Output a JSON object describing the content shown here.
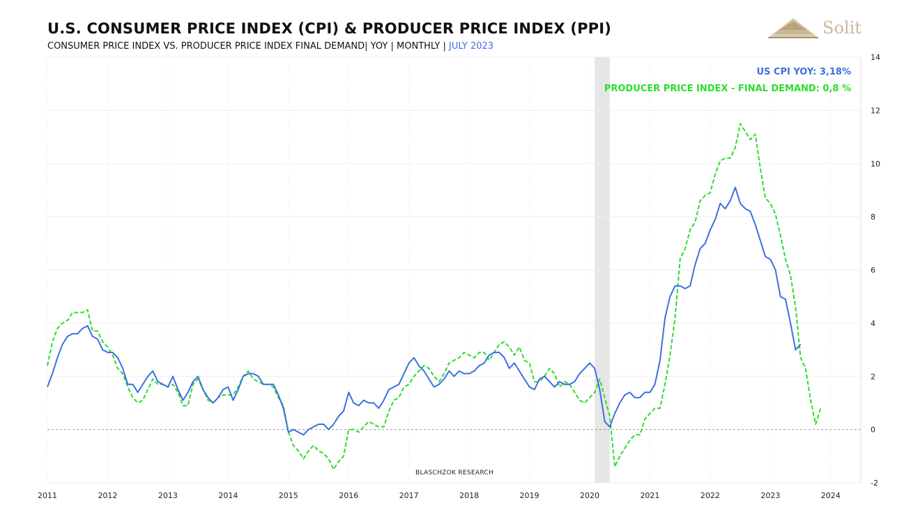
{
  "header": {
    "title": "U.S. CONSUMER PRICE INDEX (CPI) & PRODUCER PRICE INDEX (PPI)",
    "subtitle_main": "CONSUMER PRICE INDEX VS. PRODUCER PRICE INDEX FINAL DEMAND| YOY | MONTHLY | ",
    "subtitle_date": "JULY 2023"
  },
  "logo": {
    "text": "Solit",
    "icon": "pyramid-logo-icon"
  },
  "watermark": "BLASCHZOK    RESEARCH",
  "colors": {
    "cpi": "#3b6fe0",
    "ppi": "#2ddc2d",
    "recession": "#e6e6e6",
    "grid": "#eeeeee",
    "zero": "#999999"
  },
  "chart_data": {
    "type": "line",
    "title": "U.S. CONSUMER PRICE INDEX (CPI) & PRODUCER PRICE INDEX (PPI)",
    "x_ticks": [
      "2011",
      "2012",
      "2013",
      "2014",
      "2015",
      "2016",
      "2017",
      "2018",
      "2019",
      "2020",
      "2021",
      "2022",
      "2023",
      "2024"
    ],
    "y_ticks": [
      "14",
      "12",
      "10",
      "8",
      "6",
      "4",
      "2",
      "0",
      "-2"
    ],
    "ylim": [
      -2,
      14
    ],
    "xlim": [
      "2011-01",
      "2024-12"
    ],
    "y_axis_position": "right",
    "grid": true,
    "legend_position": "top-right",
    "recession_band": [
      "2020-02",
      "2020-04"
    ],
    "start": "2011-01",
    "series": [
      {
        "name": "US CPI YOY",
        "legend": "US CPI YOY: 3,18%",
        "style": "solid",
        "values": [
          1.6,
          2.1,
          2.7,
          3.2,
          3.5,
          3.6,
          3.6,
          3.8,
          3.9,
          3.5,
          3.4,
          3.0,
          2.9,
          2.9,
          2.7,
          2.3,
          1.7,
          1.7,
          1.4,
          1.7,
          2.0,
          2.2,
          1.8,
          1.7,
          1.6,
          2.0,
          1.5,
          1.1,
          1.4,
          1.8,
          2.0,
          1.5,
          1.2,
          1.0,
          1.2,
          1.5,
          1.6,
          1.1,
          1.5,
          2.0,
          2.1,
          2.1,
          2.0,
          1.7,
          1.7,
          1.7,
          1.3,
          0.8,
          -0.1,
          0.0,
          -0.1,
          -0.2,
          0.0,
          0.1,
          0.2,
          0.2,
          0.0,
          0.2,
          0.5,
          0.7,
          1.4,
          1.0,
          0.9,
          1.1,
          1.0,
          1.0,
          0.8,
          1.1,
          1.5,
          1.6,
          1.7,
          2.1,
          2.5,
          2.7,
          2.4,
          2.2,
          1.9,
          1.6,
          1.7,
          1.9,
          2.2,
          2.0,
          2.2,
          2.1,
          2.1,
          2.2,
          2.4,
          2.5,
          2.8,
          2.9,
          2.9,
          2.7,
          2.3,
          2.5,
          2.2,
          1.9,
          1.6,
          1.5,
          1.9,
          2.0,
          1.8,
          1.6,
          1.8,
          1.7,
          1.7,
          1.8,
          2.1,
          2.3,
          2.5,
          2.3,
          1.5,
          0.3,
          0.1,
          0.6,
          1.0,
          1.3,
          1.4,
          1.2,
          1.2,
          1.4,
          1.4,
          1.7,
          2.6,
          4.2,
          5.0,
          5.4,
          5.4,
          5.3,
          5.4,
          6.2,
          6.8,
          7.0,
          7.5,
          7.9,
          8.5,
          8.3,
          8.6,
          9.1,
          8.5,
          8.3,
          8.2,
          7.7,
          7.1,
          6.5,
          6.4,
          6.0,
          5.0,
          4.9,
          4.0,
          3.0,
          3.2
        ]
      },
      {
        "name": "PRODUCER PRICE INDEX - FINAL DEMAND",
        "legend": "PRODUCER PRICE INDEX - FINAL DEMAND: 0,8 %",
        "style": "dashed",
        "values": [
          2.4,
          3.3,
          3.8,
          4.0,
          4.1,
          4.4,
          4.4,
          4.4,
          4.5,
          3.7,
          3.7,
          3.3,
          3.1,
          2.8,
          2.3,
          2.1,
          1.6,
          1.2,
          1.0,
          1.1,
          1.5,
          1.9,
          1.7,
          1.7,
          1.6,
          1.7,
          1.4,
          0.9,
          0.9,
          1.7,
          1.9,
          1.5,
          1.1,
          1.0,
          1.2,
          1.3,
          1.3,
          1.3,
          1.6,
          2.0,
          2.2,
          1.9,
          1.8,
          1.7,
          1.7,
          1.6,
          1.2,
          0.9,
          -0.1,
          -0.6,
          -0.8,
          -1.1,
          -0.8,
          -0.6,
          -0.8,
          -0.9,
          -1.1,
          -1.5,
          -1.2,
          -1.0,
          0.0,
          0.0,
          -0.1,
          0.1,
          0.3,
          0.2,
          0.1,
          0.1,
          0.7,
          1.1,
          1.2,
          1.6,
          1.7,
          2.0,
          2.2,
          2.4,
          2.3,
          2.0,
          1.8,
          2.1,
          2.5,
          2.6,
          2.7,
          2.9,
          2.8,
          2.7,
          2.9,
          2.9,
          2.6,
          2.9,
          3.2,
          3.3,
          3.1,
          2.8,
          3.1,
          2.6,
          2.5,
          1.8,
          1.8,
          2.0,
          2.3,
          2.1,
          1.6,
          1.8,
          1.7,
          1.4,
          1.1,
          1.0,
          1.2,
          1.4,
          1.9,
          1.2,
          0.5,
          -1.4,
          -1.0,
          -0.7,
          -0.4,
          -0.2,
          -0.2,
          0.4,
          0.6,
          0.8,
          0.8,
          1.7,
          2.8,
          4.2,
          6.4,
          6.8,
          7.5,
          7.8,
          8.6,
          8.8,
          8.9,
          9.6,
          10.1,
          10.2,
          10.2,
          10.6,
          11.5,
          11.2,
          10.9,
          11.1,
          9.8,
          8.7,
          8.5,
          8.1,
          7.3,
          6.4,
          5.8,
          4.6,
          2.7,
          2.3,
          1.1,
          0.2,
          0.8
        ]
      }
    ]
  }
}
